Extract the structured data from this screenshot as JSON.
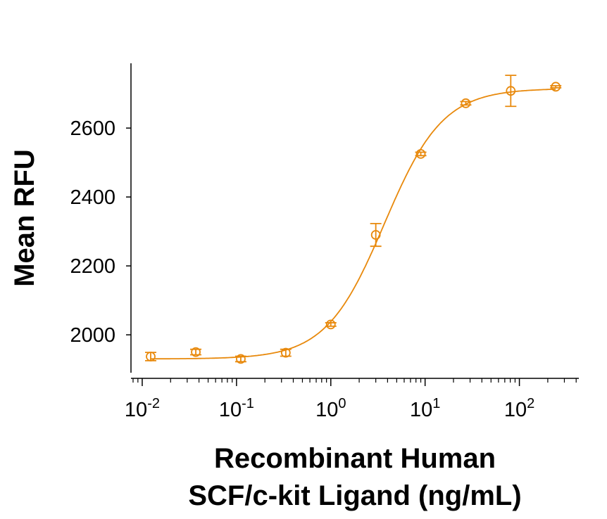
{
  "chart_data": {
    "type": "scatter",
    "title": "",
    "xlabel_lines": [
      "Recombinant Human",
      "SCF/c-kit Ligand (ng/mL)"
    ],
    "ylabel": "Mean RFU",
    "xscale": "log",
    "xlim": [
      0.0076,
      427
    ],
    "ylim": [
      1890,
      2788
    ],
    "x_ticks": [
      {
        "value": 0.01,
        "base": "10",
        "exp": "-2"
      },
      {
        "value": 0.1,
        "base": "10",
        "exp": "-1"
      },
      {
        "value": 1,
        "base": "10",
        "exp": "0"
      },
      {
        "value": 10,
        "base": "10",
        "exp": "1"
      },
      {
        "value": 100,
        "base": "10",
        "exp": "2"
      }
    ],
    "y_ticks": [
      {
        "value": 2000,
        "label": "2000"
      },
      {
        "value": 2200,
        "label": "2200"
      },
      {
        "value": 2400,
        "label": "2400"
      },
      {
        "value": 2600,
        "label": "2600"
      }
    ],
    "grid": false,
    "color": "#E8890C",
    "series": [
      {
        "name": "SCF/c-kit Ligand",
        "x": [
          0.0123,
          0.037,
          0.111,
          0.333,
          1,
          3,
          9,
          27,
          81,
          243
        ],
        "y": [
          1937,
          1950,
          1930,
          1948,
          2030,
          2290,
          2525,
          2672,
          2708,
          2720
        ],
        "error": [
          12,
          8,
          8,
          10,
          5,
          33,
          5,
          5,
          45,
          3
        ]
      }
    ],
    "fit": {
      "model": "4PL",
      "bottom": 1930,
      "top": 2715,
      "ec50": 3.7,
      "hill": 1.4
    }
  }
}
